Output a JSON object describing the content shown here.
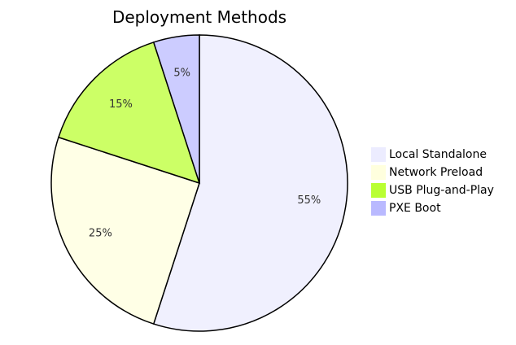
{
  "chart_data": {
    "type": "pie",
    "title": "Deployment Methods",
    "categories": [
      "Local Standalone",
      "Network Preload",
      "USB Plug-and-Play",
      "PXE Boot"
    ],
    "values": [
      55,
      25,
      15,
      5
    ],
    "labels": [
      "55%",
      "25%",
      "15%",
      "5%"
    ],
    "colors": [
      "#f0f0fe",
      "#ffffe6",
      "#ccff66",
      "#ccccff"
    ],
    "legend_colors": [
      "#ececff",
      "#ffffde",
      "#b9ff33",
      "#b9b9ff"
    ],
    "stroke_color": "#000000",
    "legend_position": "right",
    "start_angle": "top",
    "direction": "clockwise"
  }
}
